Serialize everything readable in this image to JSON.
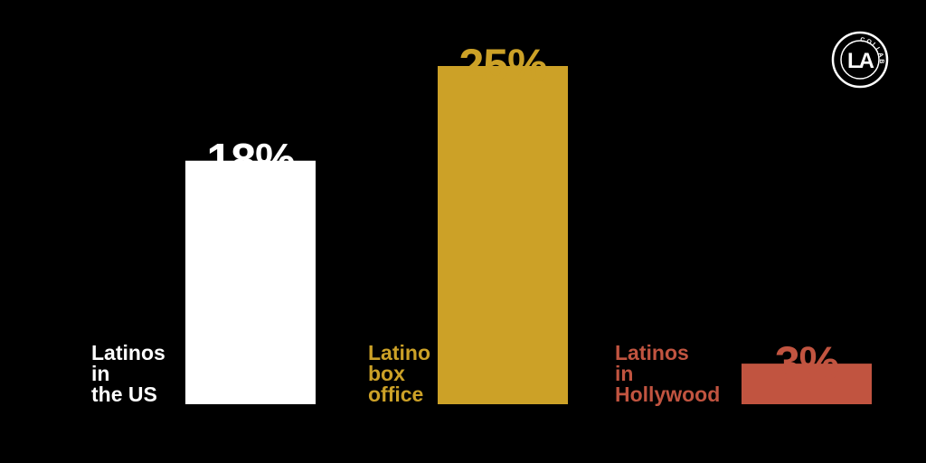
{
  "logo": {
    "main": "LA",
    "ring": "COLLAB"
  },
  "chart_data": {
    "type": "bar",
    "categories": [
      "Latinos in the US",
      "Latino box office",
      "Latinos in Hollywood"
    ],
    "category_lines": [
      [
        "Latinos",
        "in",
        "the US"
      ],
      [
        "Latino",
        "box",
        "office"
      ],
      [
        "Latinos",
        "in",
        "Hollywood"
      ]
    ],
    "values": [
      18,
      25,
      3
    ],
    "value_labels": [
      "18%",
      "25%",
      "3%"
    ],
    "colors": [
      "#ffffff",
      "#cca127",
      "#c15440"
    ],
    "ylim": [
      0,
      25
    ],
    "title": "",
    "xlabel": "",
    "ylabel": "",
    "grid": false,
    "legend": "none"
  }
}
